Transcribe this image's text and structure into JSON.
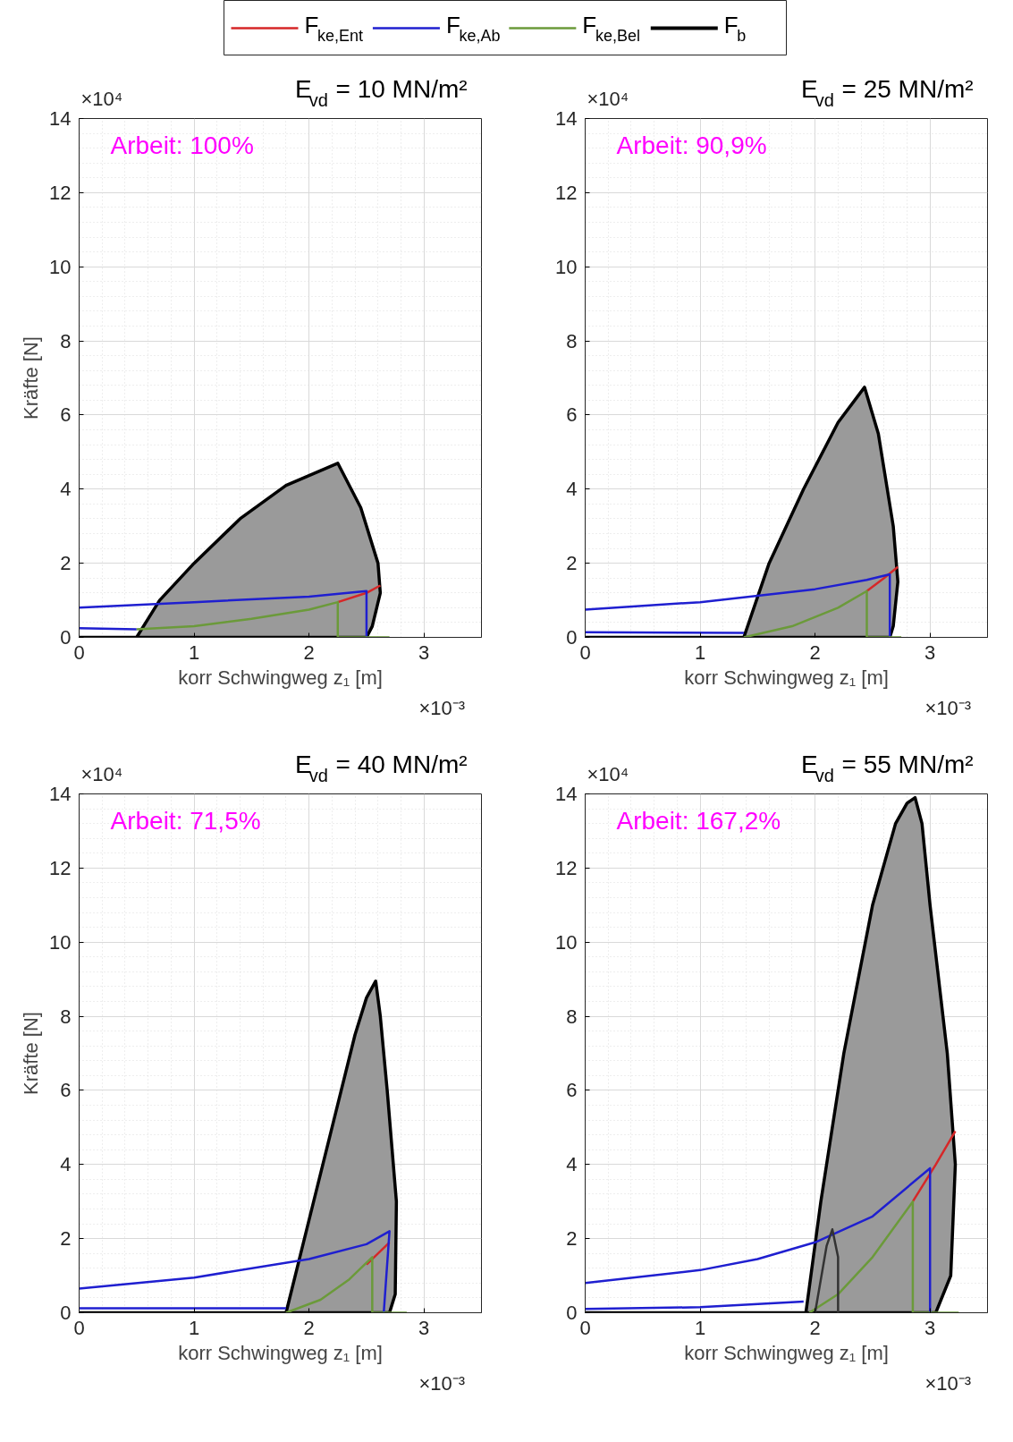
{
  "chart_data": [
    {
      "type": "line",
      "title": "E$_{vd}$ = 10 MN/m²",
      "xlabel": "korr Schwingweg z₁ [m]",
      "ylabel": "Kräfte [N]",
      "annotations": [
        "Arbeit: 100%",
        "×10⁴",
        "×10⁻³"
      ],
      "xlim": [
        0,
        3.5
      ],
      "ylim": [
        0,
        14
      ],
      "xticks": [
        0,
        1,
        2,
        3
      ],
      "yticks": [
        0,
        2,
        4,
        6,
        8,
        10,
        12,
        14
      ],
      "grid": true,
      "legend": "top",
      "series": [
        {
          "name": "F$_{ke,Ent}$",
          "color": "#d62728",
          "x": [
            2.25,
            2.5,
            2.62
          ],
          "values": [
            0.95,
            1.2,
            1.4
          ]
        },
        {
          "name": "F$_{ke,Ab}$",
          "color": "#1f1fd0",
          "x": [
            0,
            1,
            2,
            2.5,
            2.5
          ],
          "values": [
            0.8,
            0.95,
            1.1,
            1.25,
            0
          ]
        },
        {
          "color": "#1f1fd0",
          "x": [
            0,
            0.5
          ],
          "values": [
            0.25,
            0.22
          ]
        },
        {
          "name": "F$_{ke,Bel}$",
          "color": "#6b9a3a",
          "x": [
            0.5,
            1.0,
            1.5,
            2.0,
            2.25,
            2.25,
            2.7
          ],
          "values": [
            0.22,
            0.3,
            0.5,
            0.75,
            0.95,
            0,
            0
          ]
        },
        {
          "name": "F$_{b}$",
          "type": "area",
          "color": "#000000",
          "x": [
            0,
            0.5,
            0.7,
            1.0,
            1.4,
            1.8,
            2.25,
            2.45,
            2.6,
            2.62,
            2.55,
            2.5,
            0.5,
            0
          ],
          "values": [
            0,
            0,
            1.0,
            2.0,
            3.2,
            4.1,
            4.7,
            3.5,
            2.0,
            1.2,
            0.3,
            0,
            0,
            0
          ]
        }
      ]
    },
    {
      "type": "line",
      "title": "E$_{vd}$ = 25 MN/m²",
      "xlabel": "korr Schwingweg z₁ [m]",
      "annotations": [
        "Arbeit: 90,9%",
        "×10⁴",
        "×10⁻³"
      ],
      "xlim": [
        0,
        3.5
      ],
      "ylim": [
        0,
        14
      ],
      "xticks": [
        0,
        1,
        2,
        3
      ],
      "yticks": [
        0,
        2,
        4,
        6,
        8,
        10,
        12,
        14
      ],
      "grid": true,
      "series": [
        {
          "color": "#d62728",
          "x": [
            2.45,
            2.6,
            2.72
          ],
          "values": [
            1.25,
            1.6,
            1.9
          ]
        },
        {
          "color": "#1f1fd0",
          "x": [
            0,
            1,
            2,
            2.45,
            2.65,
            2.65
          ],
          "values": [
            0.75,
            0.95,
            1.3,
            1.55,
            1.7,
            0
          ]
        },
        {
          "color": "#1f1fd0",
          "x": [
            0,
            1.38
          ],
          "values": [
            0.14,
            0.12
          ]
        },
        {
          "color": "#6b9a3a",
          "x": [
            1.38,
            1.8,
            2.2,
            2.45,
            2.45,
            2.75
          ],
          "values": [
            0,
            0.3,
            0.8,
            1.25,
            0,
            0
          ]
        },
        {
          "type": "area",
          "color": "#000000",
          "x": [
            0,
            1.38,
            1.6,
            1.9,
            2.2,
            2.43,
            2.55,
            2.68,
            2.72,
            2.68,
            2.65,
            1.38,
            0
          ],
          "values": [
            0,
            0,
            2.0,
            4.0,
            5.8,
            6.75,
            5.5,
            3.0,
            1.5,
            0.3,
            0,
            0,
            0
          ]
        }
      ]
    },
    {
      "type": "line",
      "title": "E$_{vd}$ = 40 MN/m²",
      "xlabel": "korr Schwingweg z₁ [m]",
      "ylabel": "Kräfte [N]",
      "annotations": [
        "Arbeit: 71,5%",
        "×10⁴",
        "×10⁻³"
      ],
      "xlim": [
        0,
        3.5
      ],
      "ylim": [
        0,
        14
      ],
      "xticks": [
        0,
        1,
        2,
        3
      ],
      "yticks": [
        0,
        2,
        4,
        6,
        8,
        10,
        12,
        14
      ],
      "grid": true,
      "series": [
        {
          "color": "#d62728",
          "x": [
            2.5,
            2.7
          ],
          "values": [
            1.3,
            1.9
          ]
        },
        {
          "color": "#1f1fd0",
          "x": [
            0,
            1,
            2,
            2.5,
            2.7,
            2.65
          ],
          "values": [
            0.65,
            0.95,
            1.45,
            1.85,
            2.2,
            0
          ]
        },
        {
          "color": "#1f1fd0",
          "x": [
            0,
            1.8
          ],
          "values": [
            0.12,
            0.12
          ]
        },
        {
          "color": "#6b9a3a",
          "x": [
            1.8,
            2.1,
            2.35,
            2.55,
            2.55,
            2.85
          ],
          "values": [
            0,
            0.35,
            0.9,
            1.5,
            0,
            0
          ]
        },
        {
          "type": "area",
          "color": "#000000",
          "x": [
            0,
            1.8,
            2.0,
            2.2,
            2.4,
            2.5,
            2.58,
            2.62,
            2.68,
            2.76,
            2.75,
            2.7,
            1.8,
            0
          ],
          "values": [
            0,
            0,
            2.5,
            5,
            7.5,
            8.5,
            8.95,
            8.0,
            6,
            3,
            0.5,
            0,
            0,
            0
          ]
        }
      ]
    },
    {
      "type": "line",
      "title": "E$_{vd}$ = 55 MN/m²",
      "xlabel": "korr Schwingweg z₁ [m]",
      "annotations": [
        "Arbeit: 167,2%",
        "×10⁴",
        "×10⁻³"
      ],
      "xlim": [
        0,
        3.5
      ],
      "ylim": [
        0,
        14
      ],
      "xticks": [
        0,
        1,
        2,
        3
      ],
      "yticks": [
        0,
        2,
        4,
        6,
        8,
        10,
        12,
        14
      ],
      "grid": true,
      "series": [
        {
          "color": "#d62728",
          "x": [
            2.85,
            3.05,
            3.22
          ],
          "values": [
            3.0,
            4.0,
            4.9
          ]
        },
        {
          "color": "#1f1fd0",
          "x": [
            0,
            1,
            1.5,
            2,
            2.5,
            3.0,
            3.0
          ],
          "values": [
            0.8,
            1.15,
            1.45,
            1.9,
            2.6,
            3.9,
            0
          ]
        },
        {
          "color": "#1f1fd0",
          "x": [
            0,
            1,
            1.9
          ],
          "values": [
            0.1,
            0.15,
            0.3
          ]
        },
        {
          "color": "#6b9a3a",
          "x": [
            1.95,
            2.2,
            2.5,
            2.85,
            2.85,
            3.25
          ],
          "values": [
            0,
            0.5,
            1.5,
            3.0,
            0,
            0
          ]
        },
        {
          "type": "area",
          "color": "#000000",
          "x": [
            0,
            1.92,
            2.05,
            2.25,
            2.5,
            2.7,
            2.8,
            2.87,
            2.93,
            3.0,
            3.15,
            3.22,
            3.18,
            3.05,
            1.92,
            0
          ],
          "values": [
            0,
            0,
            3,
            7,
            11,
            13.2,
            13.75,
            13.9,
            13.2,
            11,
            7,
            4,
            1,
            0,
            0,
            0
          ]
        },
        {
          "color": "#333333",
          "x": [
            2.0,
            2.1,
            2.15,
            2.2,
            2.2
          ],
          "values": [
            0,
            1.8,
            2.25,
            1.5,
            0
          ]
        }
      ]
    }
  ]
}
